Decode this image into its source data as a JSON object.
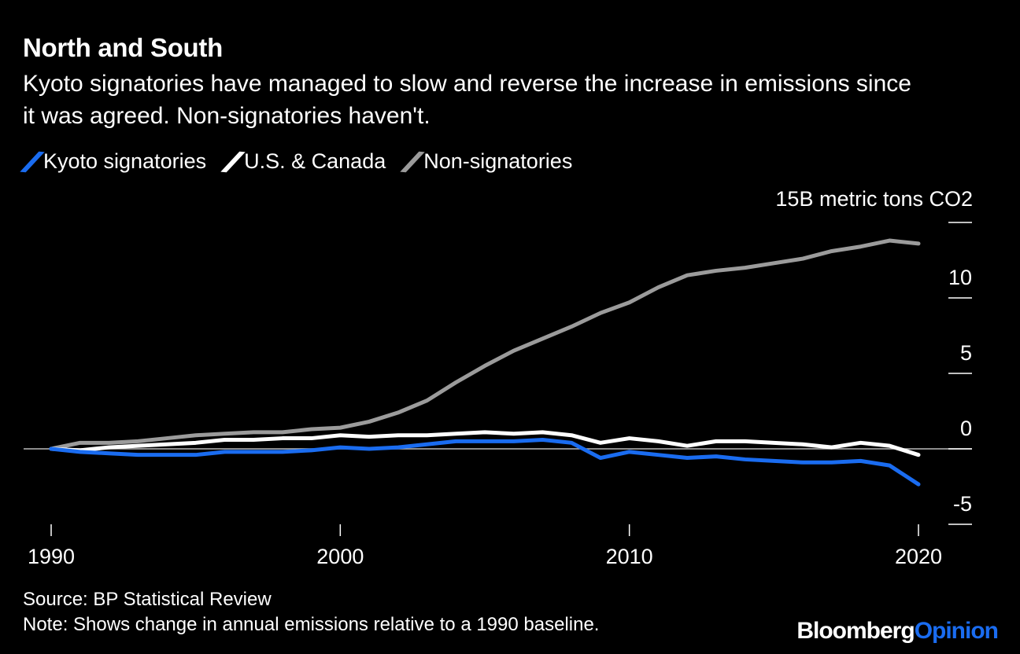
{
  "header": {
    "title": "North and South",
    "subtitle": "Kyoto signatories have managed to slow and reverse the increase in emissions since it was agreed. Non-signatories haven't."
  },
  "footer": {
    "source": "Source: BP Statistical Review",
    "note": "Note: Shows change in annual emissions relative to a 1990 baseline."
  },
  "logo": {
    "text_a": "Bloomberg",
    "text_b": "Opinion"
  },
  "chart_data": {
    "type": "line",
    "title": "North and South",
    "ylabel": "15B metric tons CO2",
    "ylim": [
      -5,
      15
    ],
    "xlim": [
      1990,
      2020
    ],
    "grid": false,
    "legend_placement": "top-left",
    "yticks": [
      {
        "value": 15,
        "label": "15B metric tons CO2"
      },
      {
        "value": 10,
        "label": "10"
      },
      {
        "value": 5,
        "label": "5"
      },
      {
        "value": 0,
        "label": "0"
      },
      {
        "value": -5,
        "label": "-5"
      }
    ],
    "xticks": [
      {
        "value": 1990,
        "label": "1990"
      },
      {
        "value": 2000,
        "label": "2000"
      },
      {
        "value": 2010,
        "label": "2010"
      },
      {
        "value": 2020,
        "label": "2020"
      }
    ],
    "x": [
      1990,
      1991,
      1992,
      1993,
      1994,
      1995,
      1996,
      1997,
      1998,
      1999,
      2000,
      2001,
      2002,
      2003,
      2004,
      2005,
      2006,
      2007,
      2008,
      2009,
      2010,
      2011,
      2012,
      2013,
      2014,
      2015,
      2016,
      2017,
      2018,
      2019,
      2020
    ],
    "series": [
      {
        "name": "Kyoto signatories",
        "color": "#1a6cf0",
        "values": [
          0,
          -0.2,
          -0.3,
          -0.4,
          -0.4,
          -0.4,
          -0.2,
          -0.2,
          -0.2,
          -0.1,
          0.1,
          0,
          0.1,
          0.3,
          0.5,
          0.5,
          0.5,
          0.6,
          0.4,
          -0.6,
          -0.2,
          -0.4,
          -0.6,
          -0.5,
          -0.7,
          -0.8,
          -0.9,
          -0.9,
          -0.8,
          -1.1,
          -2.35
        ]
      },
      {
        "name": "U.S. & Canada",
        "color": "#ffffff",
        "values": [
          0,
          -0.1,
          0.1,
          0.2,
          0.3,
          0.4,
          0.6,
          0.6,
          0.7,
          0.7,
          0.9,
          0.8,
          0.9,
          0.9,
          1.0,
          1.1,
          1.0,
          1.1,
          0.9,
          0.4,
          0.7,
          0.5,
          0.2,
          0.5,
          0.5,
          0.4,
          0.3,
          0.1,
          0.4,
          0.2,
          -0.4
        ]
      },
      {
        "name": "Non-signatories",
        "color": "#9b9b9b",
        "values": [
          0,
          0.4,
          0.4,
          0.5,
          0.7,
          0.9,
          1.0,
          1.1,
          1.1,
          1.3,
          1.4,
          1.8,
          2.4,
          3.2,
          4.4,
          5.5,
          6.5,
          7.3,
          8.1,
          9.0,
          9.7,
          10.7,
          11.5,
          11.8,
          12.0,
          12.3,
          12.6,
          13.1,
          13.4,
          13.8,
          13.6
        ]
      }
    ]
  }
}
